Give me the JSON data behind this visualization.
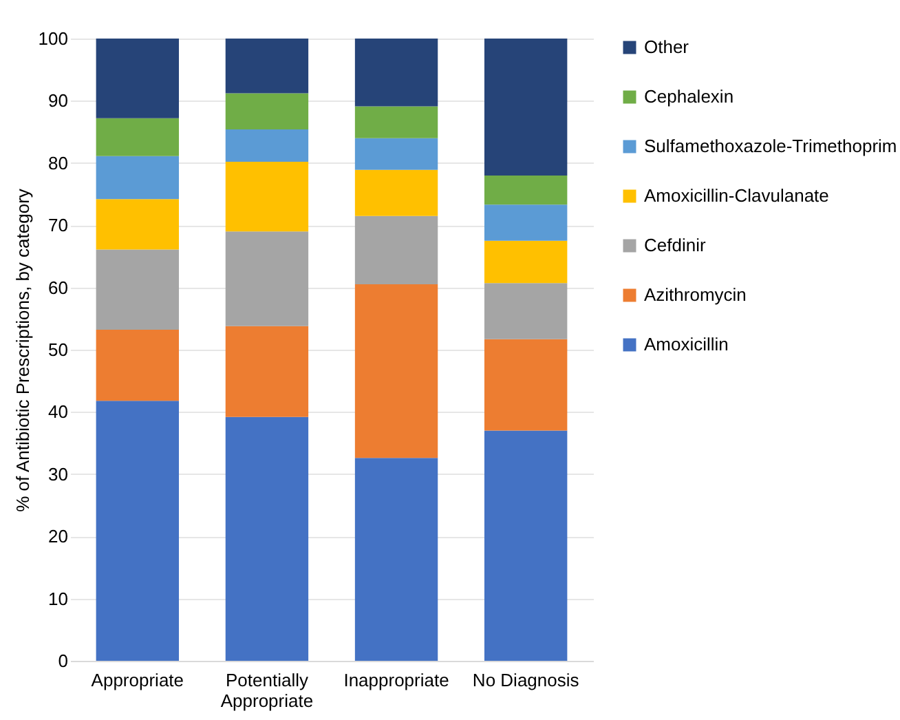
{
  "chart_data": {
    "type": "bar",
    "stacked": true,
    "ylabel": "% of Antibiotic Prescriptions, by category",
    "categories": [
      "Appropriate",
      "Potentially Appropriate",
      "Inappropriate",
      "No Diagnosis"
    ],
    "series": [
      {
        "name": "Amoxicillin",
        "color": "#4472c4",
        "values": [
          41.8,
          39.2,
          32.6,
          37.0
        ]
      },
      {
        "name": "Azithromycin",
        "color": "#ed7d31",
        "values": [
          11.4,
          14.6,
          27.9,
          14.7
        ]
      },
      {
        "name": "Cefdinir",
        "color": "#a5a5a5",
        "values": [
          12.9,
          15.2,
          11.0,
          9.0
        ]
      },
      {
        "name": "Amoxicillin-Clavulanate",
        "color": "#ffc000",
        "values": [
          8.1,
          11.2,
          7.4,
          6.8
        ]
      },
      {
        "name": "Sulfamethoxazole-Trimethoprim",
        "color": "#5b9bd5",
        "values": [
          6.9,
          5.2,
          5.1,
          5.8
        ]
      },
      {
        "name": "Cephalexin",
        "color": "#70ad47",
        "values": [
          6.1,
          5.8,
          5.1,
          4.7
        ]
      },
      {
        "name": "Other",
        "color": "#264478",
        "values": [
          12.8,
          8.8,
          10.9,
          22.0
        ]
      }
    ],
    "ylim": [
      0,
      100
    ],
    "yticks": [
      0,
      10,
      20,
      30,
      40,
      50,
      60,
      70,
      80,
      90,
      100
    ],
    "grid": "y",
    "legend": "right"
  }
}
